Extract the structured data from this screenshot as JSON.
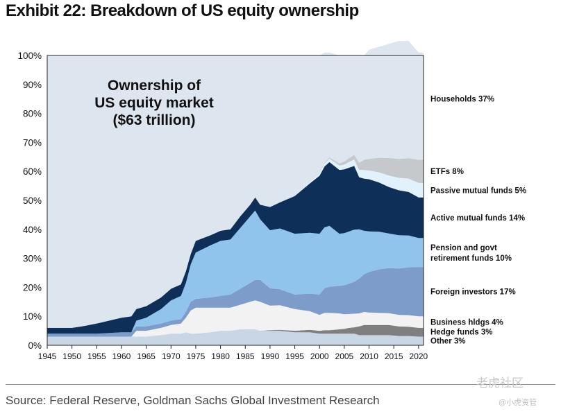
{
  "header": {
    "title": "Exhibit 22: Breakdown of US equity ownership"
  },
  "chart_data": {
    "type": "area",
    "stacked": true,
    "title": "Ownership of US equity market ($63 trillion)",
    "title_lines": [
      "Ownership of",
      "US equity market",
      "($63 trillion)"
    ],
    "xlabel": "",
    "ylabel": "",
    "xlim": [
      1945,
      2021
    ],
    "ylim": [
      0,
      100
    ],
    "y_ticks": [
      "0%",
      "10%",
      "20%",
      "30%",
      "40%",
      "50%",
      "60%",
      "70%",
      "80%",
      "90%",
      "100%"
    ],
    "x_ticks": [
      1945,
      1950,
      1955,
      1960,
      1965,
      1970,
      1975,
      1980,
      1985,
      1990,
      1995,
      2000,
      2005,
      2010,
      2015,
      2020
    ],
    "x": [
      1945,
      1950,
      1952,
      1955,
      1960,
      1962,
      1963,
      1965,
      1968,
      1970,
      1972,
      1973,
      1974,
      1975,
      1978,
      1980,
      1982,
      1984,
      1986,
      1987,
      1988,
      1990,
      1992,
      1995,
      1998,
      2000,
      2001,
      2002,
      2004,
      2005,
      2006,
      2007,
      2008,
      2009,
      2010,
      2012,
      2014,
      2016,
      2018,
      2020,
      2021
    ],
    "series": [
      {
        "name": "Other 3%",
        "color": "#c9d6e6",
        "values": [
          3,
          3,
          3,
          3,
          3,
          3,
          3,
          3,
          3.5,
          4,
          4,
          4.5,
          4,
          4,
          4.5,
          5,
          5,
          5.5,
          5.5,
          5.5,
          5,
          5,
          5,
          4.5,
          4.5,
          4,
          4,
          4,
          4,
          4,
          4,
          4,
          3.5,
          3.5,
          3.5,
          3.5,
          3.5,
          3.2,
          3.2,
          3,
          3
        ]
      },
      {
        "name": "Hedge funds 3%",
        "color": "#7f7f7f",
        "values": [
          0,
          0,
          0,
          0,
          0,
          0,
          0,
          0,
          0,
          0,
          0,
          0,
          0,
          0,
          0,
          0,
          0,
          0,
          0,
          0,
          0,
          0.2,
          0.3,
          0.5,
          0.8,
          1,
          1.2,
          1.2,
          1.5,
          1.7,
          2,
          2.2,
          3,
          3.5,
          3.5,
          3.5,
          3.5,
          3.3,
          3.2,
          3,
          3
        ]
      },
      {
        "name": "Business hldgs 4%",
        "color": "#f2f2f2",
        "values": [
          0,
          0,
          0,
          0,
          0,
          0,
          2,
          2,
          2.5,
          3,
          3.5,
          5,
          8,
          9,
          8.5,
          8,
          8,
          8.5,
          9.5,
          10,
          10,
          8.5,
          8.5,
          7.5,
          6.5,
          5.5,
          6,
          6,
          5.5,
          5,
          4.8,
          4.7,
          4.5,
          4.5,
          4.3,
          4.2,
          4.1,
          4,
          4,
          4,
          4
        ]
      },
      {
        "name": "Foreign investors 17%",
        "color": "#7d9cca",
        "values": [
          1,
          1,
          1,
          1,
          1.5,
          1.5,
          1.5,
          1.5,
          1.5,
          1.5,
          1.5,
          2,
          3,
          3,
          3.5,
          4,
          4.5,
          5.5,
          6.5,
          7,
          7.5,
          6,
          5.5,
          5,
          6,
          7,
          8.5,
          9,
          9.5,
          10,
          10.5,
          11,
          12,
          13,
          14,
          15,
          15.5,
          16,
          16.5,
          17,
          17
        ]
      },
      {
        "name": "Pension and govt retirement funds 10%",
        "color": "#91c4ec",
        "values": [
          0,
          0,
          0,
          0,
          0,
          0,
          2,
          3,
          5,
          7,
          8,
          10,
          13,
          16,
          18,
          19,
          19,
          21,
          23,
          24,
          21,
          20,
          21,
          21,
          21,
          21,
          21,
          21,
          18,
          18,
          18,
          18,
          17,
          15,
          14,
          13,
          12,
          11.5,
          11,
          10,
          10
        ]
      },
      {
        "name": "Active mutual funds 14%",
        "color": "#0e2f57",
        "values": [
          2,
          2,
          2.5,
          3.5,
          5,
          5.5,
          4,
          4,
          4,
          4,
          4,
          4,
          3.5,
          4,
          3.5,
          3.5,
          3.5,
          4,
          4,
          4.5,
          5,
          8,
          9,
          13,
          17,
          20,
          21,
          22,
          22,
          22,
          22,
          22,
          18,
          18,
          18,
          17,
          16,
          15.5,
          15,
          14,
          14
        ]
      },
      {
        "name": "Passive mutual funds 5%",
        "color": "#e2f2fc",
        "values": [
          0,
          0,
          0,
          0,
          0,
          0,
          0,
          0,
          0,
          0,
          0,
          0,
          0,
          0,
          0,
          0,
          0,
          0,
          0,
          0,
          0,
          0,
          0,
          0,
          0.5,
          1,
          1,
          1.2,
          1.5,
          1.7,
          2,
          2.2,
          2.5,
          3,
          3,
          3.5,
          4,
          4.3,
          4.6,
          5,
          5
        ]
      },
      {
        "name": "ETFs 8%",
        "color": "#c6c9cc",
        "values": [
          0,
          0,
          0,
          0,
          0,
          0,
          0,
          0,
          0,
          0,
          0,
          0,
          0,
          0,
          0,
          0,
          0,
          0,
          0,
          0,
          0,
          0,
          0,
          0,
          0,
          0.2,
          0.3,
          0.4,
          0.7,
          1,
          1.3,
          1.6,
          2.5,
          3.5,
          4,
          5,
          6,
          6.5,
          7,
          8,
          8
        ]
      },
      {
        "name": "Households 37%",
        "color": "#dde5ef",
        "values": [
          94,
          94,
          93.5,
          92.5,
          90.5,
          90,
          87.5,
          86.5,
          83.5,
          80.5,
          79,
          74.5,
          68.5,
          64,
          62,
          60.5,
          60,
          55.5,
          51.5,
          49,
          51.5,
          52.3,
          50.7,
          48.5,
          43.7,
          40.3,
          38,
          36.2,
          37.3,
          35.6,
          35.4,
          34.3,
          37,
          36,
          37.7,
          38.3,
          39.4,
          40.7,
          40.5,
          37,
          37
        ]
      }
    ],
    "legend_placement": "right",
    "grid": false
  },
  "footer": {
    "source": "Source: Federal Reserve, Goldman Sachs Global Investment Research",
    "watermark": "老虎社区",
    "watermark_sub": "@小虎资管"
  }
}
